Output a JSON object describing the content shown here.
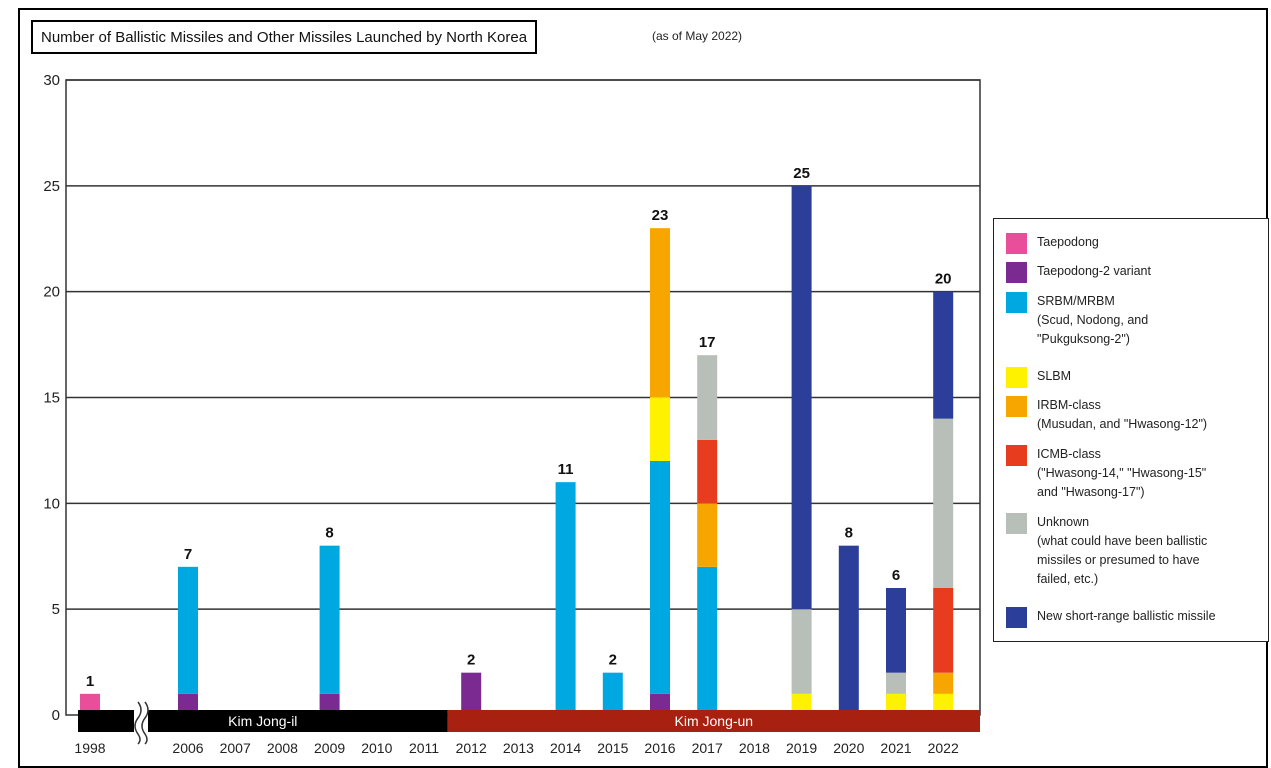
{
  "header": {
    "title": "Number of Ballistic Missiles and Other Missiles Launched by North Korea",
    "subtitle": "(as of May 2022)"
  },
  "chart_data": {
    "type": "bar",
    "stacked": true,
    "categories": [
      "1998",
      "2006",
      "2007",
      "2008",
      "2009",
      "2010",
      "2011",
      "2012",
      "2013",
      "2014",
      "2015",
      "2016",
      "2017",
      "2018",
      "2019",
      "2020",
      "2021",
      "2022"
    ],
    "series": [
      {
        "name": "Taepodong",
        "color": "#e84e9a",
        "values": [
          1,
          0,
          0,
          0,
          0,
          0,
          0,
          0,
          0,
          0,
          0,
          0,
          0,
          0,
          0,
          0,
          0,
          0
        ]
      },
      {
        "name": "Taepodong-2 variant",
        "color": "#7a2a90",
        "values": [
          0,
          1,
          0,
          0,
          1,
          0,
          0,
          2,
          0,
          0,
          0,
          1,
          0,
          0,
          0,
          0,
          0,
          0
        ]
      },
      {
        "name": "SRBM/MRBM\n(Scud, Nodong, and\n\"Pukguksong-2\")",
        "color": "#00a8e1",
        "values": [
          0,
          6,
          0,
          0,
          7,
          0,
          0,
          0,
          0,
          11,
          2,
          11,
          7,
          0,
          0,
          0,
          0,
          0
        ]
      },
      {
        "name": "SLBM",
        "color": "#fff200",
        "values": [
          0,
          0,
          0,
          0,
          0,
          0,
          0,
          0,
          0,
          0,
          0,
          3,
          0,
          0,
          1,
          0,
          1,
          1
        ]
      },
      {
        "name": "IRBM-class\n(Musudan, and \"Hwasong-12\")",
        "color": "#f7a600",
        "values": [
          0,
          0,
          0,
          0,
          0,
          0,
          0,
          0,
          0,
          0,
          0,
          8,
          3,
          0,
          0,
          0,
          0,
          1
        ]
      },
      {
        "name": "ICMB-class\n(\"Hwasong-14,\" \"Hwasong-15\"\nand \"Hwasong-17\")",
        "color": "#e83c1e",
        "values": [
          0,
          0,
          0,
          0,
          0,
          0,
          0,
          0,
          0,
          0,
          0,
          0,
          3,
          0,
          0,
          0,
          0,
          4
        ]
      },
      {
        "name": "Unknown\n(what could have been ballistic\nmissiles or presumed to have\nfailed, etc.)",
        "color": "#b8bfb8",
        "values": [
          0,
          0,
          0,
          0,
          0,
          0,
          0,
          0,
          0,
          0,
          0,
          0,
          4,
          0,
          4,
          0,
          1,
          8
        ]
      },
      {
        "name": "New short-range ballistic missile",
        "color": "#2a3e9a",
        "values": [
          0,
          0,
          0,
          0,
          0,
          0,
          0,
          0,
          0,
          0,
          0,
          0,
          0,
          0,
          20,
          8,
          4,
          6
        ]
      }
    ],
    "stack_order": [
      "Taepodong",
      "Taepodong-2 variant",
      "SRBM/MRBM\n(Scud, Nodong, and\n\"Pukguksong-2\")",
      "SLBM",
      "IRBM-class\n(Musudan, and \"Hwasong-12\")",
      "ICMB-class\n(\"Hwasong-14,\" \"Hwasong-15\"\nand \"Hwasong-17\")",
      "Unknown\n(what could have been ballistic\nmissiles or presumed to have\nfailed, etc.)",
      "New short-range ballistic missile"
    ],
    "totals": [
      1,
      7,
      null,
      null,
      8,
      null,
      null,
      2,
      null,
      11,
      2,
      23,
      17,
      null,
      25,
      8,
      6,
      20
    ],
    "ylim": [
      0,
      30
    ],
    "yticks": [
      0,
      5,
      10,
      15,
      20,
      25,
      30
    ],
    "grid": true,
    "legend_position": "right",
    "eras": [
      {
        "label": "Kim Jong-il",
        "from": "1998",
        "to": "2011",
        "color": "#000000"
      },
      {
        "label": "Kim Jong-un",
        "from": "2012",
        "to": "2022",
        "color": "#a82010"
      }
    ]
  }
}
